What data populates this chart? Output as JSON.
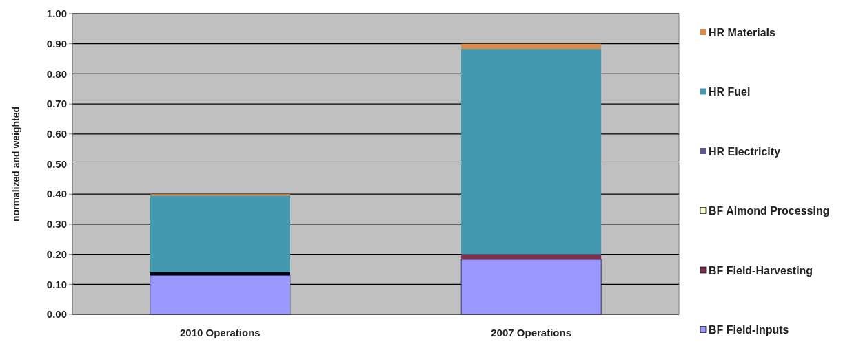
{
  "chart_data": {
    "type": "bar",
    "stacked": true,
    "ylabel": "normalized and weighted",
    "categories": [
      "2010 Operations",
      "2007 Operations"
    ],
    "series": [
      {
        "name": "BF Field-Inputs",
        "color": "#9999ff",
        "values": [
          0.13,
          0.183
        ]
      },
      {
        "name": "BF Field-Harvesting",
        "color": "#7d2f52",
        "colors": [
          "#000010",
          "#7d2f52"
        ],
        "values": [
          0.01,
          0.017
        ]
      },
      {
        "name": "BF Almond Processing",
        "color": "#ffffcc",
        "values": [
          0,
          0
        ]
      },
      {
        "name": "HR Electricity",
        "color": "#5f5a8c",
        "values": [
          0,
          0
        ]
      },
      {
        "name": "HR Fuel",
        "color": "#4399b0",
        "values": [
          0.255,
          0.683
        ]
      },
      {
        "name": "HR Materials",
        "color": "#d9894a",
        "values": [
          0.005,
          0.017
        ]
      }
    ],
    "ylim": [
      0,
      1
    ],
    "yticks": [
      {
        "value": 0,
        "label": "0.00"
      },
      {
        "value": 0.1,
        "label": "0.10"
      },
      {
        "value": 0.2,
        "label": "0.20"
      },
      {
        "value": 0.3,
        "label": "0.30"
      },
      {
        "value": 0.4,
        "label": "0.40"
      },
      {
        "value": 0.5,
        "label": "0.50"
      },
      {
        "value": 0.6,
        "label": "0.60"
      },
      {
        "value": 0.7,
        "label": "0.70"
      },
      {
        "value": 0.8,
        "label": "0.80"
      },
      {
        "value": 0.9,
        "label": "0.90"
      },
      {
        "value": 1,
        "label": "1.00"
      }
    ],
    "grid": "y",
    "legend": "right"
  }
}
